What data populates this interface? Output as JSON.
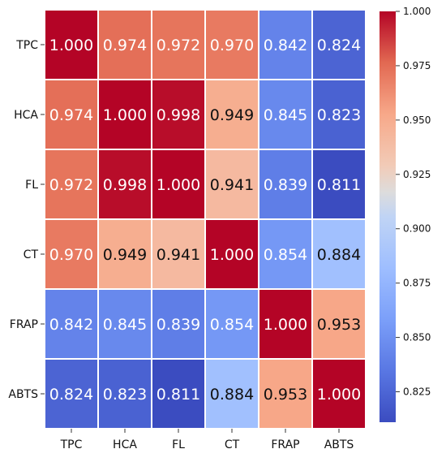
{
  "chart_data": {
    "type": "heatmap",
    "title": "",
    "xlabel": "",
    "ylabel": "",
    "x_categories": [
      "TPC",
      "HCA",
      "FL",
      "CT",
      "FRAP",
      "ABTS"
    ],
    "y_categories": [
      "TPC",
      "HCA",
      "FL",
      "CT",
      "FRAP",
      "ABTS"
    ],
    "values": [
      [
        1.0,
        0.974,
        0.972,
        0.97,
        0.842,
        0.824
      ],
      [
        0.974,
        1.0,
        0.998,
        0.949,
        0.845,
        0.823
      ],
      [
        0.972,
        0.998,
        1.0,
        0.941,
        0.839,
        0.811
      ],
      [
        0.97,
        0.949,
        0.941,
        1.0,
        0.854,
        0.884
      ],
      [
        0.842,
        0.845,
        0.839,
        0.854,
        1.0,
        0.953
      ],
      [
        0.824,
        0.823,
        0.811,
        0.884,
        0.953,
        1.0
      ]
    ],
    "value_format": "3 decimals",
    "colormap": "coolwarm",
    "color_range": [
      0.811,
      1.0
    ],
    "colorbar": {
      "ticks": [
        "1.000",
        "0.975",
        "0.950",
        "0.925",
        "0.900",
        "0.875",
        "0.850",
        "0.825"
      ],
      "placement": "right"
    },
    "colors": {
      "low": "#3b4cc0",
      "mid": "#dddddd",
      "high": "#b40426",
      "light_text": "#ffffff",
      "dark_text": "#111111"
    }
  }
}
